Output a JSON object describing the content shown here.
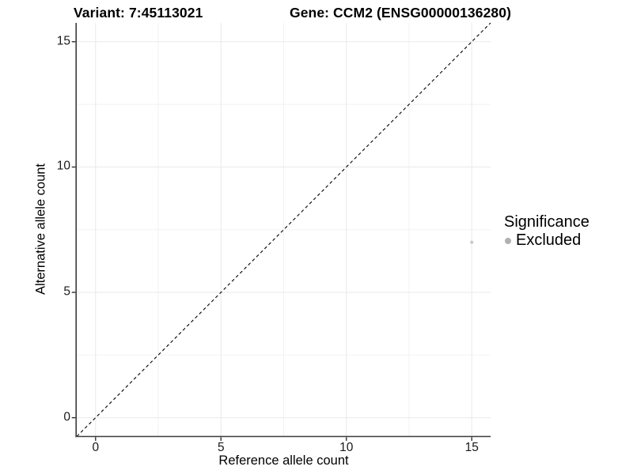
{
  "chart_data": {
    "type": "scatter",
    "titles": {
      "left": "Variant: 7:45113021",
      "right": "Gene: CCM2 (ENSG00000136280)"
    },
    "xlabel": "Reference allele count",
    "ylabel": "Alternative allele count",
    "xlim": [
      -0.75,
      15.75
    ],
    "ylim": [
      -0.75,
      15.75
    ],
    "x_major_ticks": [
      0,
      5,
      10,
      15
    ],
    "y_major_ticks": [
      0,
      5,
      10,
      15
    ],
    "x_minor_ticks": [
      2.5,
      7.5,
      12.5
    ],
    "y_minor_ticks": [
      2.5,
      7.5,
      12.5
    ],
    "grid": "major+minor",
    "reference_line": {
      "type": "identity y=x",
      "style": "dashed",
      "color": "#000000"
    },
    "series": [
      {
        "name": "Excluded",
        "color": "#c6c6c6",
        "point_radius": 2,
        "points": [
          {
            "x": 15,
            "y": 7
          }
        ]
      }
    ],
    "legend": {
      "title": "Significance",
      "position": "right",
      "items": [
        {
          "label": "Excluded",
          "color": "#b0b0b0",
          "marker": "circle"
        }
      ]
    },
    "colors": {
      "background": "#ffffff",
      "major_gridline": "#e9e9e9",
      "minor_gridline": "#f2f2f2",
      "axis_line": "#3c3c3c",
      "tick_mark": "#333333",
      "tick_label": "#1a1a1a",
      "title": "#000000"
    }
  }
}
